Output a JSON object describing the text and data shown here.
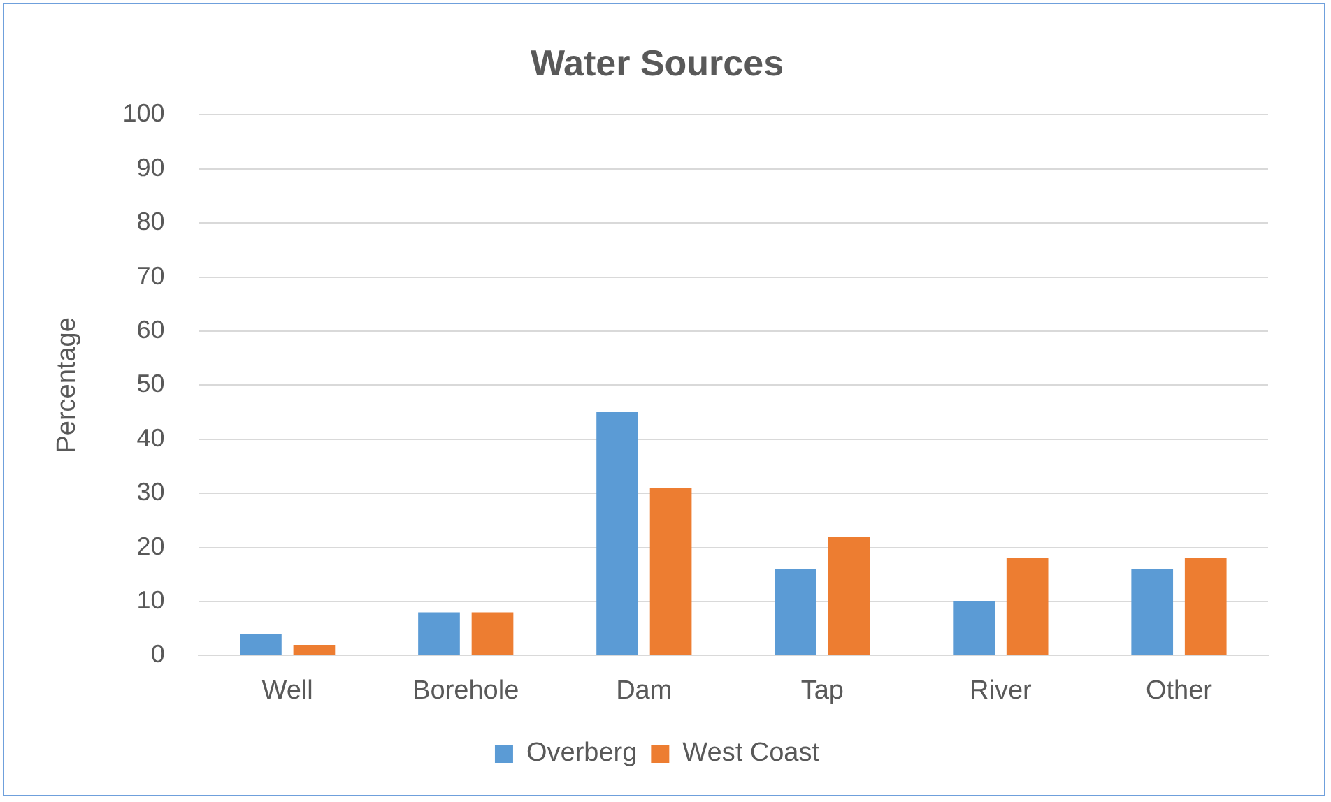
{
  "chart_data": {
    "type": "bar",
    "title": "Water Sources",
    "ylabel": "Percentage",
    "categories": [
      "Well",
      "Borehole",
      "Dam",
      "Tap",
      "River",
      "Other"
    ],
    "series": [
      {
        "name": "Overberg",
        "color": "#5b9bd5",
        "values": [
          4,
          8,
          45,
          16,
          10,
          16
        ]
      },
      {
        "name": "West Coast",
        "color": "#ed7d31",
        "values": [
          2,
          8,
          31,
          22,
          18,
          18
        ]
      }
    ],
    "ylim": [
      0,
      100
    ],
    "yticks": [
      0,
      10,
      20,
      30,
      40,
      50,
      60,
      70,
      80,
      90,
      100
    ],
    "grid": "y",
    "legend": "bottom"
  }
}
